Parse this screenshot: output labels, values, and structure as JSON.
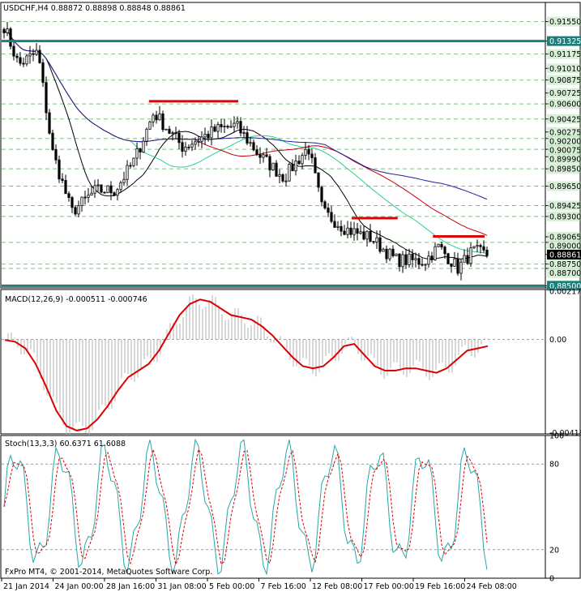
{
  "chart_data": [
    {
      "type": "candlestick",
      "header": "USDCHF,H4  0.88872 0.88898 0.88848 0.88861",
      "ylim": [
        0.88475,
        0.9164
      ],
      "price_labels": [
        "0.91550",
        "0.91325",
        "0.91175",
        "0.91010",
        "0.90875",
        "0.90725",
        "0.90600",
        "0.90425",
        "0.90275",
        "0.90200",
        "0.90075",
        "0.89990",
        "0.89850",
        "0.89650",
        "0.89425",
        "0.89300",
        "0.89065",
        "0.89000",
        "0.88750",
        "0.88700",
        "0.88500",
        "0.88861"
      ],
      "highlighted_labels": [
        "0.91325",
        "0.88500",
        "0.88861"
      ],
      "horizontal_levels": [
        0.91325,
        0.885
      ],
      "dashed_levels": [
        0.9155,
        0.91175,
        0.90875,
        0.906,
        0.90425,
        0.902,
        0.90075,
        0.8985,
        0.8965,
        0.89425,
        0.893,
        0.89,
        0.8875,
        0.887
      ],
      "resistance_segments": [
        {
          "x0": 0.305,
          "x1": 0.49,
          "y": 0.9063
        },
        {
          "x0": 0.725,
          "x1": 0.82,
          "y": 0.8928
        },
        {
          "x0": 0.893,
          "x1": 1.0,
          "y": 0.8907
        }
      ]
    },
    {
      "type": "line",
      "header": "MACD(12,26,9) -0.000511 -0.000746",
      "ylim": [
        -0.00425,
        0.00225
      ],
      "y_labels": [
        "0.002177",
        "0.00",
        "-0.004188"
      ],
      "signal_series": [
        -2e-05,
        -0.0001,
        -0.0004,
        -0.0011,
        -0.0021,
        -0.0032,
        -0.0039,
        -0.0041,
        -0.004,
        -0.0036,
        -0.003,
        -0.0023,
        -0.0017,
        -0.0014,
        -0.0011,
        -0.0005,
        0.0003,
        0.0011,
        0.0016,
        0.0018,
        0.0017,
        0.0014,
        0.0011,
        0.001,
        0.0009,
        0.0006,
        0.0002,
        -0.0003,
        -0.0008,
        -0.0012,
        -0.0013,
        -0.0012,
        -0.0008,
        -0.0003,
        -0.0002,
        -0.0007,
        -0.0012,
        -0.0014,
        -0.0014,
        -0.0013,
        -0.0013,
        -0.0014,
        -0.0015,
        -0.0013,
        -0.0009,
        -0.0005,
        -0.0004,
        -0.0003
      ]
    },
    {
      "type": "line",
      "header": "Stoch(13,3,3) 60.6371 61.6088",
      "ylim": [
        0,
        100
      ],
      "y_labels": [
        "100",
        "80",
        "20",
        "0"
      ]
    }
  ],
  "x_labels": [
    "21 Jan 2014",
    "24 Jan 00:00",
    "28 Jan 16:00",
    "31 Jan 08:00",
    "5 Feb 00:00",
    "7 Feb 16:00",
    "12 Feb 08:00",
    "17 Feb 00:00",
    "19 Feb 16:00",
    "24 Feb 08:00"
  ],
  "copyright": "FxPro MT4, © 2001-2014, MetaQuotes Software Corp.",
  "colors": {
    "candles": "#000000",
    "ma_black": "#000000",
    "ma_red": "#c0000a",
    "ma_green": "#2ecf8f",
    "ma_blue": "#22229a",
    "level_teal": "#1e7f7a",
    "resistance": "#e00000",
    "macd_hist": "#b0b0b0",
    "macd_signal": "#dd0000",
    "stoch_main": "#2aa6a6",
    "stoch_signal": "#dd0000",
    "grid_dash": "#80c080"
  }
}
